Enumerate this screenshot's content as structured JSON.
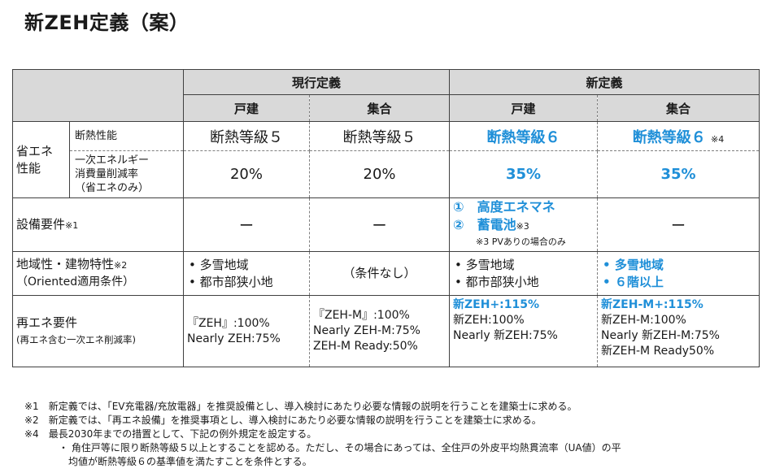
{
  "title": "新ZEH定義（案）",
  "header": {
    "current_def": "現行定義",
    "new_def": "新定義",
    "detached": "戸建",
    "collective": "集合"
  },
  "rows": {
    "energy_saving": {
      "label_line1": "省エネ",
      "label_line2": "性能",
      "insulation": {
        "label": "断熱性能",
        "cur_detached": "断熱等級５",
        "cur_collective": "断熱等級５",
        "new_detached": "断熱等級６",
        "new_collective": "断熱等級６",
        "new_collective_note": "※4"
      },
      "reduction": {
        "label_line1": "一次エネルギー",
        "label_line2": "消費量削減率",
        "label_line3": "（省エネのみ）",
        "cur_detached": "20%",
        "cur_collective": "20%",
        "new_detached": "35%",
        "new_collective": "35%"
      }
    },
    "equipment": {
      "label": "設備要件",
      "label_note": "※1",
      "cur_detached": "ー",
      "cur_collective": "ー",
      "new_detached_item1": "①　高度エネマネ",
      "new_detached_item2": "②　蓄電池",
      "new_detached_item2_note": "※3",
      "new_detached_footnote": "※3 PVありの場合のみ",
      "new_collective": "ー"
    },
    "regional": {
      "label_line1": "地域性・建物特性",
      "label_note": "※2",
      "label_line2": "（Oriented適用条件）",
      "cur_detached": [
        "多雪地域",
        "都市部狭小地"
      ],
      "cur_collective": "（条件なし）",
      "new_detached": [
        "多雪地域",
        "都市部狭小地"
      ],
      "new_collective": [
        "多雪地域",
        "６階以上"
      ]
    },
    "renewable": {
      "label_line1": "再エネ要件",
      "label_line2": "(再エネ含む一次エネ削減率)",
      "cur_detached": [
        "『ZEH』:100%",
        "Nearly ZEH:75%"
      ],
      "cur_collective": [
        "『ZEH-M』:100%",
        "Nearly ZEH-M:75%",
        "ZEH-M Ready:50%"
      ],
      "new_detached_bold": "新ZEH+:115%",
      "new_detached": [
        "新ZEH:100%",
        "Nearly 新ZEH:75%"
      ],
      "new_collective_bold": "新ZEH-M+:115%",
      "new_collective": [
        "新ZEH-M:100%",
        "Nearly 新ZEH-M:75%",
        "新ZEH-M Ready50%"
      ]
    }
  },
  "notes": {
    "n1": "※1　新定義では、「EV充電器/充放電器」を推奨設備とし、導入検討にあたり必要な情報の説明を行うことを建築士に求める。",
    "n2": "※2　新定義では、「再エネ設備」を推奨事項とし、導入検討にあたり必要な情報の説明を行うことを建築士に求める。",
    "n4": "※4　最長2030年までの措置として、下記の例外規定を設定する。",
    "n4_a": "・ 角住戸等に限り断熱等級５以上とすることを認める。ただし、その場合にあっては、全住戸の外皮平均熱貫流率（UA値）の平",
    "n4_b": "均値が断熱等級６の基準値を満たすことを条件とする。"
  },
  "colors": {
    "accent": "#1f8fd8",
    "header_bg": "#d9d9d9"
  }
}
